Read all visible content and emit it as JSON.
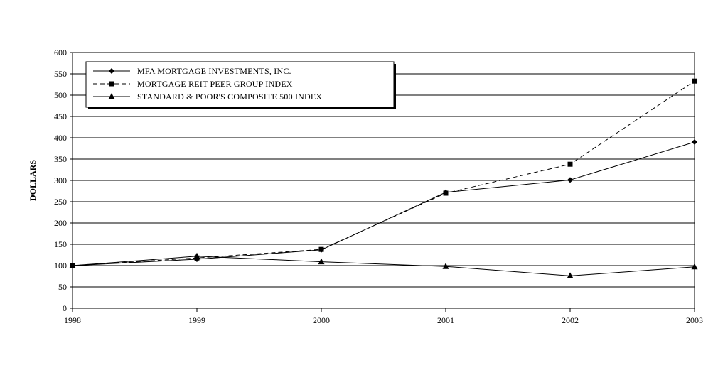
{
  "chart_data": {
    "type": "line",
    "title": "",
    "xlabel": "",
    "ylabel": "DOLLARS",
    "x": [
      "1998",
      "1999",
      "2000",
      "2001",
      "2002",
      "2003"
    ],
    "ylim": [
      0,
      600
    ],
    "yticks": [
      0,
      50,
      100,
      150,
      200,
      250,
      300,
      350,
      400,
      450,
      500,
      550,
      600
    ],
    "grid": true,
    "legend_position": "top-left",
    "series": [
      {
        "name": "MFA MORTGAGE INVESTMENTS, INC.",
        "values": [
          100,
          115,
          137,
          272,
          301,
          390
        ],
        "marker": "diamond",
        "line_style": "solid",
        "color": "#000000"
      },
      {
        "name": "MORTGAGE REIT PEER GROUP INDEX",
        "values": [
          100,
          118,
          138,
          270,
          338,
          533
        ],
        "marker": "square",
        "line_style": "dashed",
        "color": "#000000"
      },
      {
        "name": "STANDARD & POOR'S COMPOSITE 500 INDEX",
        "values": [
          100,
          122,
          109,
          98,
          76,
          97
        ],
        "marker": "triangle",
        "line_style": "solid",
        "color": "#000000"
      }
    ]
  }
}
